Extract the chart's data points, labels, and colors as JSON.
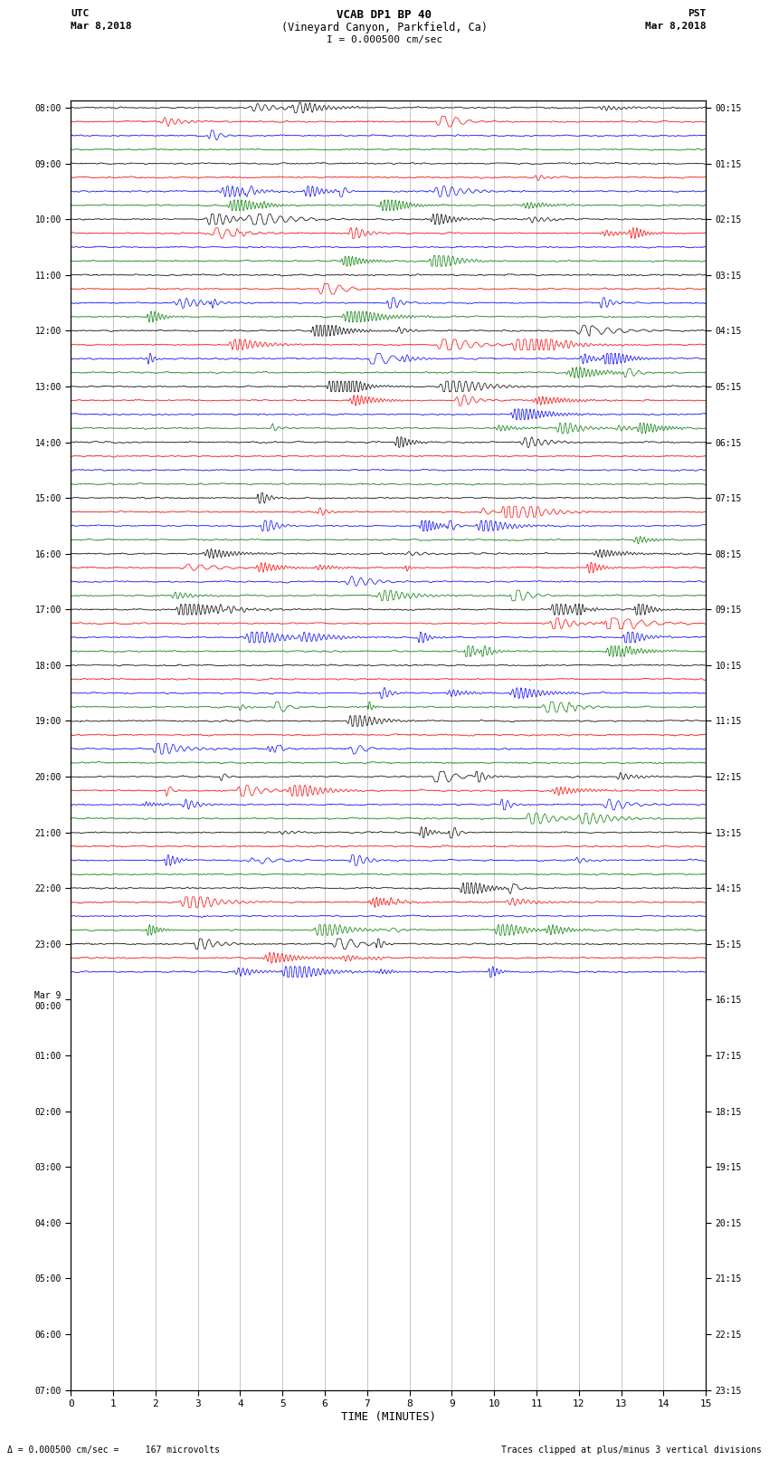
{
  "title_line1": "VCAB DP1 BP 40",
  "title_line2": "(Vineyard Canyon, Parkfield, Ca)",
  "scale_text": "I = 0.000500 cm/sec",
  "left_label_top": "UTC",
  "left_label_date": "Mar 8,2018",
  "right_label_top": "PST",
  "right_label_date": "Mar 8,2018",
  "bottom_label": "TIME (MINUTES)",
  "footer_left": "Δ = 0.000500 cm/sec =     167 microvolts",
  "footer_right": "Traces clipped at plus/minus 3 vertical divisions",
  "utc_times": [
    "08:00",
    "",
    "",
    "",
    "09:00",
    "",
    "",
    "",
    "10:00",
    "",
    "",
    "",
    "11:00",
    "",
    "",
    "",
    "12:00",
    "",
    "",
    "",
    "13:00",
    "",
    "",
    "",
    "14:00",
    "",
    "",
    "",
    "15:00",
    "",
    "",
    "",
    "16:00",
    "",
    "",
    "",
    "17:00",
    "",
    "",
    "",
    "18:00",
    "",
    "",
    "",
    "19:00",
    "",
    "",
    "",
    "20:00",
    "",
    "",
    "",
    "21:00",
    "",
    "",
    "",
    "22:00",
    "",
    "",
    "",
    "23:00",
    "",
    "",
    "",
    "Mar 9\n00:00",
    "",
    "",
    "",
    "01:00",
    "",
    "",
    "",
    "02:00",
    "",
    "",
    "",
    "03:00",
    "",
    "",
    "",
    "04:00",
    "",
    "",
    "",
    "05:00",
    "",
    "",
    "",
    "06:00",
    "",
    "",
    "",
    "07:00",
    "",
    ""
  ],
  "pst_times": [
    "00:15",
    "",
    "",
    "",
    "01:15",
    "",
    "",
    "",
    "02:15",
    "",
    "",
    "",
    "03:15",
    "",
    "",
    "",
    "04:15",
    "",
    "",
    "",
    "05:15",
    "",
    "",
    "",
    "06:15",
    "",
    "",
    "",
    "07:15",
    "",
    "",
    "",
    "08:15",
    "",
    "",
    "",
    "09:15",
    "",
    "",
    "",
    "10:15",
    "",
    "",
    "",
    "11:15",
    "",
    "",
    "",
    "12:15",
    "",
    "",
    "",
    "13:15",
    "",
    "",
    "",
    "14:15",
    "",
    "",
    "",
    "15:15",
    "",
    "",
    "",
    "16:15",
    "",
    "",
    "",
    "17:15",
    "",
    "",
    "",
    "18:15",
    "",
    "",
    "",
    "19:15",
    "",
    "",
    "",
    "20:15",
    "",
    "",
    "",
    "21:15",
    "",
    "",
    "",
    "22:15",
    "",
    "",
    "",
    "23:15",
    "",
    ""
  ],
  "num_traces": 63,
  "trace_colors_cycle": [
    "black",
    "red",
    "blue",
    "green"
  ],
  "x_min": 0,
  "x_max": 15,
  "x_ticks": [
    0,
    1,
    2,
    3,
    4,
    5,
    6,
    7,
    8,
    9,
    10,
    11,
    12,
    13,
    14,
    15
  ],
  "bg_color": "white",
  "grid_color": "#aaaaaa",
  "figwidth": 8.5,
  "figheight": 16.13
}
